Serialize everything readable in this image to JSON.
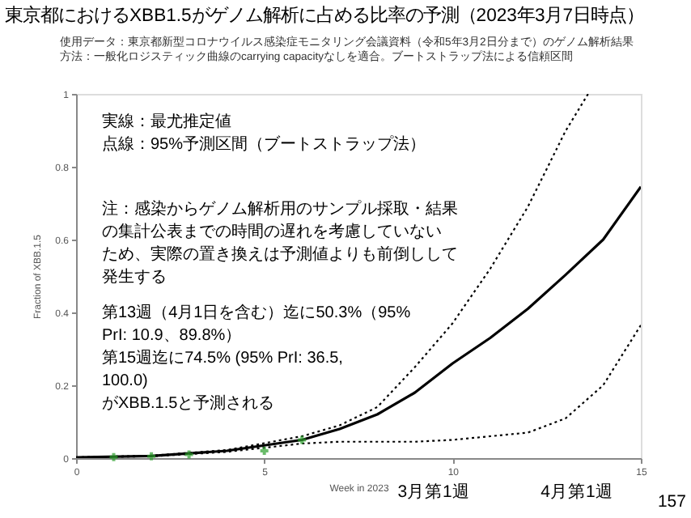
{
  "chart_data": {
    "type": "line",
    "title": "東京都におけるXBB1.5がゲノム解析に占める比率の予測（2023年3月7日時点）",
    "subtitle": "使用データ：東京都新型コロナウイルス感染症モニタリング会議資料（令和5年3月2日分まで）のゲノム解析結果",
    "xlabel": "Week in 2023",
    "ylabel": "Fraction of XBB.1.5",
    "xlim": [
      0,
      15
    ],
    "xticks": [
      0,
      5,
      10,
      15
    ],
    "ylim": [
      0,
      1
    ],
    "yticks": [
      0,
      0.2,
      0.4,
      0.6,
      0.8,
      1
    ],
    "grid": false,
    "legend": false,
    "series": [
      {
        "line_style": "solid",
        "color": "#000000",
        "x": [
          0,
          2,
          4,
          6,
          7,
          8,
          9,
          10,
          11,
          12,
          13,
          14,
          15
        ],
        "values": [
          0.002,
          0.006,
          0.02,
          0.05,
          0.08,
          0.12,
          0.18,
          0.26,
          0.33,
          0.41,
          0.503,
          0.6,
          0.745
        ]
      },
      {
        "line_style": "dotted",
        "color": "#000000",
        "x": [
          0,
          2,
          4,
          6,
          7,
          8,
          9,
          10,
          11,
          12,
          13,
          13.6
        ],
        "values": [
          0.002,
          0.007,
          0.022,
          0.06,
          0.09,
          0.14,
          0.25,
          0.37,
          0.52,
          0.69,
          0.898,
          1
        ]
      },
      {
        "line_style": "dotted",
        "color": "#000000",
        "x": [
          0,
          2,
          4,
          6,
          7,
          8,
          9,
          10,
          11,
          12,
          13,
          14,
          15
        ],
        "values": [
          0.002,
          0.005,
          0.017,
          0.04,
          0.045,
          0.045,
          0.045,
          0.05,
          0.06,
          0.07,
          0.109,
          0.2,
          0.365
        ]
      },
      {
        "type": "scatter",
        "marker": "cross",
        "color": "#2ca02c",
        "x": [
          1,
          2,
          3,
          5,
          6
        ],
        "values": [
          0.003,
          0.005,
          0.01,
          0.02,
          0.05
        ]
      }
    ],
    "annotations": [
      "方法：一般化ロジスティック曲線のcarrying capacityなしを適合。ブートストラップ法による信頼区間",
      "実線：最尤推定値",
      "点線：95%予測区間（ブートストラップ法）",
      "注：感染からゲノム解析用のサンプル採取・結果",
      "の集計公表までの時間の遅れを考慮していない",
      "ため、実際の置き換えは予測値よりも前倒しして",
      "発生する",
      "第13週（4月1日を含む）迄に50.3%（95%",
      "PrI: 10.9、89.8%）",
      "第15週迄に74.5% (95% PrI: 36.5,",
      "100.0)",
      "がXBB.1.5と予測される",
      "3月第1週",
      "4月第1週",
      "157"
    ]
  }
}
